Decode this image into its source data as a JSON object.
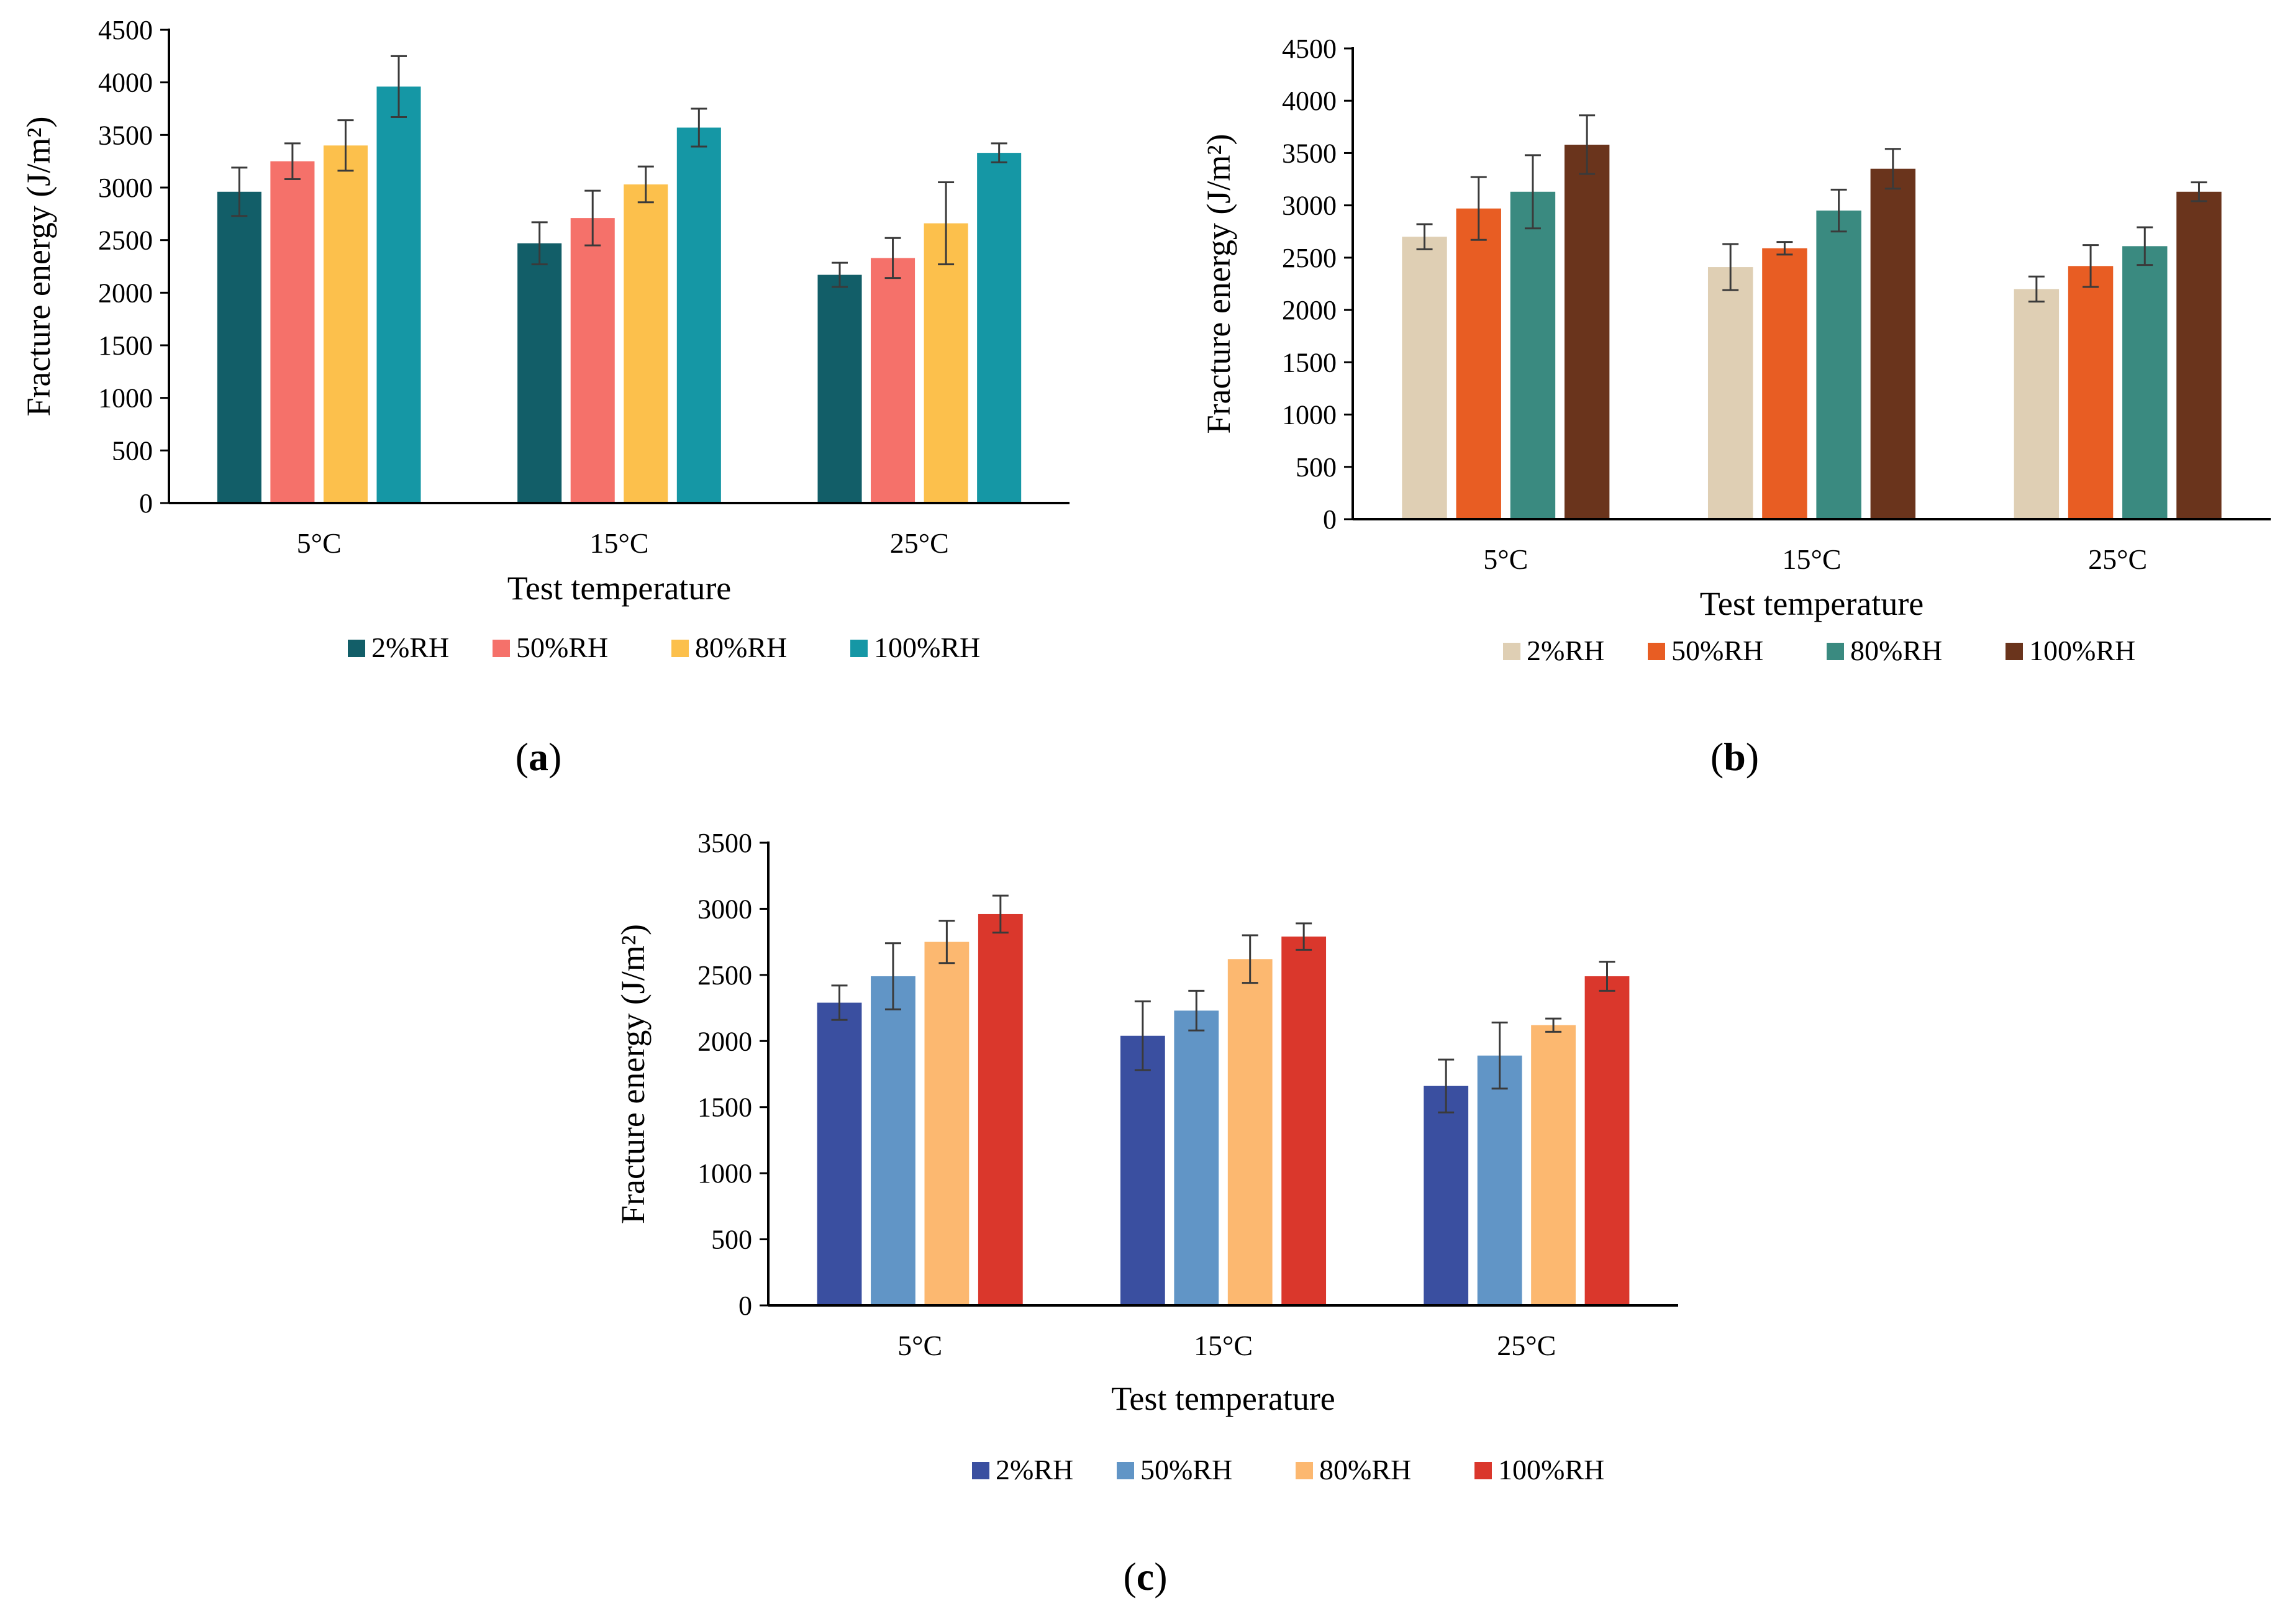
{
  "chart_data": [
    {
      "panel": "(a)",
      "panel_letter": "a",
      "type": "bar",
      "title": "",
      "xlabel": "Test temperature",
      "ylabel": "Fracture energy  (J/m²)",
      "ylim": [
        0,
        4500
      ],
      "yticks": [
        "0",
        "500",
        "1000",
        "1500",
        "2000",
        "2500",
        "3000",
        "3500",
        "4000",
        "4500"
      ],
      "categories": [
        "5°C",
        "15°C",
        "25°C"
      ],
      "series": [
        {
          "name": "2%RH",
          "color": "#125E68",
          "values": [
            2960,
            2470,
            2170
          ],
          "errors": [
            230,
            200,
            115
          ]
        },
        {
          "name": "50%RH",
          "color": "#F5716A",
          "values": [
            3250,
            2710,
            2330
          ],
          "errors": [
            170,
            260,
            190
          ]
        },
        {
          "name": "80%RH",
          "color": "#FCC04C",
          "values": [
            3400,
            3030,
            2660
          ],
          "errors": [
            240,
            170,
            390
          ]
        },
        {
          "name": "100%RH",
          "color": "#1597A5",
          "values": [
            3960,
            3570,
            3330
          ],
          "errors": [
            290,
            180,
            90
          ]
        }
      ]
    },
    {
      "panel": "(b)",
      "panel_letter": "b",
      "type": "bar",
      "title": "",
      "xlabel": "Test temperature",
      "ylabel": "Fracture energy  (J/m²)",
      "ylim": [
        0,
        4500
      ],
      "yticks": [
        "0",
        "500",
        "1000",
        "1500",
        "2000",
        "2500",
        "3000",
        "3500",
        "4000",
        "4500"
      ],
      "categories": [
        "5°C",
        "15°C",
        "25°C"
      ],
      "series": [
        {
          "name": "2%RH",
          "color": "#DFCFB4",
          "values": [
            2700,
            2410,
            2200
          ],
          "errors": [
            120,
            220,
            120
          ]
        },
        {
          "name": "50%RH",
          "color": "#E85D23",
          "values": [
            2970,
            2590,
            2420
          ],
          "errors": [
            300,
            60,
            200
          ]
        },
        {
          "name": "80%RH",
          "color": "#3A8A80",
          "values": [
            3130,
            2950,
            2610
          ],
          "errors": [
            350,
            200,
            180
          ]
        },
        {
          "name": "100%RH",
          "color": "#6A341C",
          "values": [
            3580,
            3350,
            3130
          ],
          "errors": [
            280,
            190,
            90
          ]
        }
      ]
    },
    {
      "panel": "(c)",
      "panel_letter": "c",
      "type": "bar",
      "title": "",
      "xlabel": "Test temperature",
      "ylabel": "Fracture energy  (J/m²)",
      "ylim": [
        0,
        3500
      ],
      "yticks": [
        "0",
        "500",
        "1000",
        "1500",
        "2000",
        "2500",
        "3000",
        "3500"
      ],
      "categories": [
        "5°C",
        "15°C",
        "25°C"
      ],
      "series": [
        {
          "name": "2%RH",
          "color": "#3A4FA0",
          "values": [
            2290,
            2040,
            1660
          ],
          "errors": [
            130,
            260,
            200
          ]
        },
        {
          "name": "50%RH",
          "color": "#6195C6",
          "values": [
            2490,
            2230,
            1890
          ],
          "errors": [
            250,
            150,
            250
          ]
        },
        {
          "name": "80%RH",
          "color": "#FCB870",
          "values": [
            2750,
            2620,
            2120
          ],
          "errors": [
            160,
            180,
            50
          ]
        },
        {
          "name": "100%RH",
          "color": "#DA372C",
          "values": [
            2960,
            2790,
            2490
          ],
          "errors": [
            140,
            100,
            110
          ]
        }
      ]
    }
  ]
}
